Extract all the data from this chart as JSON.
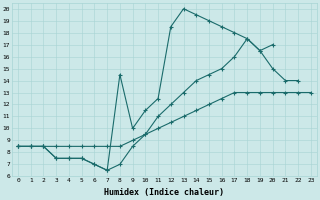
{
  "xlabel": "Humidex (Indice chaleur)",
  "bg_color": "#cce8e8",
  "line_color": "#1a6b6b",
  "xlim": [
    -0.5,
    23.5
  ],
  "ylim": [
    6,
    20.5
  ],
  "xticks": [
    0,
    1,
    2,
    3,
    4,
    5,
    6,
    7,
    8,
    9,
    10,
    11,
    12,
    13,
    14,
    15,
    16,
    17,
    18,
    19,
    20,
    21,
    22,
    23
  ],
  "yticks": [
    6,
    7,
    8,
    9,
    10,
    11,
    12,
    13,
    14,
    15,
    16,
    17,
    18,
    19,
    20
  ],
  "curves": [
    {
      "x": [
        0,
        1,
        2,
        3,
        4,
        5,
        6,
        7,
        8,
        9,
        10,
        11,
        12,
        13,
        14,
        15,
        16,
        17,
        18,
        19,
        20,
        21,
        22,
        23
      ],
      "y": [
        8.5,
        8.5,
        8.5,
        8.5,
        8.5,
        8.5,
        8.5,
        8.5,
        8.5,
        9.0,
        9.5,
        10.0,
        10.5,
        11.0,
        11.5,
        12.0,
        12.5,
        13.0,
        13.0,
        13.0,
        13.0,
        13.0,
        13.0,
        13.0
      ]
    },
    {
      "x": [
        0,
        1,
        2,
        3,
        4,
        5,
        6,
        7,
        8,
        9,
        10,
        11,
        12,
        13,
        14,
        15,
        16,
        17,
        18,
        19,
        20,
        21,
        22
      ],
      "y": [
        8.5,
        8.5,
        8.5,
        7.5,
        7.5,
        7.5,
        7.0,
        6.5,
        14.5,
        10.0,
        11.5,
        12.5,
        18.5,
        20.0,
        19.5,
        19.0,
        18.5,
        18.0,
        17.5,
        16.5,
        15.0,
        14.0,
        14.0
      ]
    },
    {
      "x": [
        0,
        1,
        2,
        3,
        4,
        5,
        6,
        7,
        8,
        9,
        10,
        11,
        12,
        13,
        14,
        15,
        16,
        17,
        18,
        19,
        20,
        21,
        22,
        23
      ],
      "y": [
        8.5,
        8.5,
        8.5,
        7.5,
        7.5,
        7.5,
        7.0,
        6.5,
        7.0,
        8.5,
        9.5,
        11.0,
        12.0,
        13.0,
        14.0,
        14.5,
        15.0,
        16.0,
        17.5,
        16.5,
        17.0,
        null,
        null,
        null
      ]
    }
  ]
}
